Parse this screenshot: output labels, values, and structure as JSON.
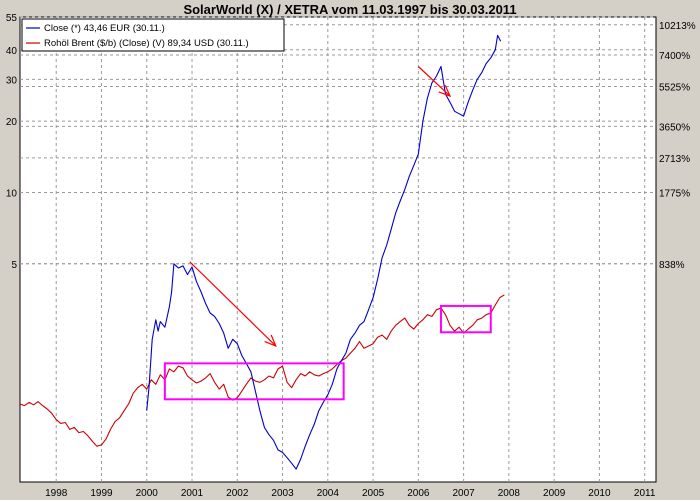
{
  "chart_data": {
    "type": "line",
    "title": "SolarWorld (X) / XETRA vom 11.03.1997  bis 30.03.2011",
    "x_range": [
      1997.2,
      2011.25
    ],
    "x_tick_labels": [
      "1998",
      "1999",
      "2000",
      "2001",
      "2002",
      "2003",
      "2004",
      "2005",
      "2006",
      "2007",
      "2008",
      "2009",
      "2010",
      "2011"
    ],
    "left_axis": {
      "scale": "log",
      "range": [
        0.6,
        55
      ],
      "ticks": [
        {
          "value": 5,
          "label": "5"
        },
        {
          "value": 10,
          "label": "10"
        },
        {
          "value": 20,
          "label": "20"
        },
        {
          "value": 30,
          "label": "30"
        },
        {
          "value": 40,
          "label": "40"
        },
        {
          "value": 55,
          "label": "55"
        }
      ]
    },
    "right_axis": {
      "ticks": [
        {
          "value": 5,
          "label": "838%"
        },
        {
          "value": 10,
          "label": "1775%"
        },
        {
          "value": 14,
          "label": "2713%"
        },
        {
          "value": 19,
          "label": "3650%"
        },
        {
          "value": 28,
          "label": "5525%"
        },
        {
          "value": 38,
          "label": "7400%"
        },
        {
          "value": 51,
          "label": "10213%"
        }
      ]
    },
    "grid": true,
    "legend_placement": "top-left",
    "series": [
      {
        "name": "Close (*) 43,46 EUR (30.11.)",
        "color": "#0000cc",
        "points": [
          [
            2000.0,
            1.2
          ],
          [
            2000.05,
            1.5
          ],
          [
            2000.12,
            2.4
          ],
          [
            2000.2,
            2.9
          ],
          [
            2000.25,
            2.6
          ],
          [
            2000.3,
            2.85
          ],
          [
            2000.4,
            2.7
          ],
          [
            2000.5,
            3.3
          ],
          [
            2000.55,
            3.8
          ],
          [
            2000.6,
            5.0
          ],
          [
            2000.7,
            4.8
          ],
          [
            2000.8,
            4.9
          ],
          [
            2000.9,
            4.5
          ],
          [
            2001.0,
            4.85
          ],
          [
            2001.1,
            4.2
          ],
          [
            2001.2,
            3.8
          ],
          [
            2001.3,
            3.4
          ],
          [
            2001.4,
            3.1
          ],
          [
            2001.5,
            3.0
          ],
          [
            2001.6,
            2.8
          ],
          [
            2001.7,
            2.55
          ],
          [
            2001.8,
            2.2
          ],
          [
            2001.9,
            2.4
          ],
          [
            2002.0,
            2.3
          ],
          [
            2002.1,
            2.05
          ],
          [
            2002.2,
            1.9
          ],
          [
            2002.3,
            1.75
          ],
          [
            2002.4,
            1.45
          ],
          [
            2002.5,
            1.2
          ],
          [
            2002.6,
            1.02
          ],
          [
            2002.7,
            0.95
          ],
          [
            2002.8,
            0.9
          ],
          [
            2002.9,
            0.82
          ],
          [
            2003.0,
            0.8
          ],
          [
            2003.1,
            0.76
          ],
          [
            2003.2,
            0.72
          ],
          [
            2003.3,
            0.68
          ],
          [
            2003.4,
            0.75
          ],
          [
            2003.5,
            0.85
          ],
          [
            2003.6,
            0.95
          ],
          [
            2003.7,
            1.05
          ],
          [
            2003.8,
            1.2
          ],
          [
            2003.9,
            1.3
          ],
          [
            2004.0,
            1.4
          ],
          [
            2004.1,
            1.55
          ],
          [
            2004.2,
            1.8
          ],
          [
            2004.3,
            1.95
          ],
          [
            2004.4,
            2.1
          ],
          [
            2004.5,
            2.4
          ],
          [
            2004.6,
            2.55
          ],
          [
            2004.7,
            2.75
          ],
          [
            2004.8,
            2.85
          ],
          [
            2004.9,
            3.2
          ],
          [
            2005.0,
            3.6
          ],
          [
            2005.1,
            4.3
          ],
          [
            2005.2,
            5.3
          ],
          [
            2005.3,
            6.0
          ],
          [
            2005.4,
            7.0
          ],
          [
            2005.5,
            8.2
          ],
          [
            2005.6,
            9.2
          ],
          [
            2005.7,
            10.3
          ],
          [
            2005.8,
            11.7
          ],
          [
            2005.9,
            13.0
          ],
          [
            2006.0,
            14.5
          ],
          [
            2006.1,
            20.0
          ],
          [
            2006.2,
            25.0
          ],
          [
            2006.3,
            29.0
          ],
          [
            2006.4,
            31.0
          ],
          [
            2006.5,
            34.0
          ],
          [
            2006.6,
            26.0
          ],
          [
            2006.7,
            24.0
          ],
          [
            2006.8,
            22.0
          ],
          [
            2006.9,
            21.5
          ],
          [
            2007.0,
            21.0
          ],
          [
            2007.1,
            24.0
          ],
          [
            2007.2,
            27.0
          ],
          [
            2007.3,
            30.0
          ],
          [
            2007.4,
            32.0
          ],
          [
            2007.5,
            35.0
          ],
          [
            2007.6,
            37.0
          ],
          [
            2007.7,
            40.0
          ],
          [
            2007.75,
            46.0
          ],
          [
            2007.82,
            43.46
          ]
        ]
      },
      {
        "name": "Rohöl Brent ($/b) (Close) (V) 89,34 USD (30.11.)",
        "color": "#cc0000",
        "points": [
          [
            1997.2,
            1.28
          ],
          [
            1997.3,
            1.26
          ],
          [
            1997.4,
            1.3
          ],
          [
            1997.5,
            1.27
          ],
          [
            1997.6,
            1.31
          ],
          [
            1997.7,
            1.26
          ],
          [
            1997.8,
            1.22
          ],
          [
            1997.9,
            1.17
          ],
          [
            1998.0,
            1.1
          ],
          [
            1998.1,
            1.06
          ],
          [
            1998.2,
            1.07
          ],
          [
            1998.3,
            1.0
          ],
          [
            1998.4,
            1.02
          ],
          [
            1998.5,
            0.97
          ],
          [
            1998.6,
            0.98
          ],
          [
            1998.7,
            0.94
          ],
          [
            1998.8,
            0.89
          ],
          [
            1998.9,
            0.85
          ],
          [
            1999.0,
            0.86
          ],
          [
            1999.1,
            0.91
          ],
          [
            1999.2,
            1.0
          ],
          [
            1999.3,
            1.08
          ],
          [
            1999.4,
            1.12
          ],
          [
            1999.5,
            1.2
          ],
          [
            1999.6,
            1.28
          ],
          [
            1999.7,
            1.42
          ],
          [
            1999.8,
            1.5
          ],
          [
            1999.9,
            1.55
          ],
          [
            2000.0,
            1.48
          ],
          [
            2000.1,
            1.62
          ],
          [
            2000.2,
            1.55
          ],
          [
            2000.3,
            1.7
          ],
          [
            2000.4,
            1.62
          ],
          [
            2000.5,
            1.8
          ],
          [
            2000.6,
            1.75
          ],
          [
            2000.7,
            1.85
          ],
          [
            2000.8,
            1.82
          ],
          [
            2000.9,
            1.68
          ],
          [
            2001.0,
            1.62
          ],
          [
            2001.1,
            1.57
          ],
          [
            2001.2,
            1.6
          ],
          [
            2001.3,
            1.65
          ],
          [
            2001.4,
            1.72
          ],
          [
            2001.5,
            1.58
          ],
          [
            2001.6,
            1.48
          ],
          [
            2001.7,
            1.55
          ],
          [
            2001.8,
            1.37
          ],
          [
            2001.9,
            1.33
          ],
          [
            2002.0,
            1.36
          ],
          [
            2002.1,
            1.45
          ],
          [
            2002.2,
            1.55
          ],
          [
            2002.3,
            1.65
          ],
          [
            2002.4,
            1.6
          ],
          [
            2002.5,
            1.58
          ],
          [
            2002.6,
            1.62
          ],
          [
            2002.7,
            1.68
          ],
          [
            2002.8,
            1.65
          ],
          [
            2002.9,
            1.8
          ],
          [
            2003.0,
            1.85
          ],
          [
            2003.1,
            1.58
          ],
          [
            2003.2,
            1.5
          ],
          [
            2003.3,
            1.62
          ],
          [
            2003.4,
            1.72
          ],
          [
            2003.5,
            1.68
          ],
          [
            2003.6,
            1.75
          ],
          [
            2003.7,
            1.7
          ],
          [
            2003.8,
            1.68
          ],
          [
            2003.9,
            1.72
          ],
          [
            2004.0,
            1.75
          ],
          [
            2004.1,
            1.8
          ],
          [
            2004.2,
            1.88
          ],
          [
            2004.3,
            1.95
          ],
          [
            2004.4,
            2.0
          ],
          [
            2004.5,
            2.1
          ],
          [
            2004.6,
            2.2
          ],
          [
            2004.7,
            2.35
          ],
          [
            2004.8,
            2.2
          ],
          [
            2004.9,
            2.25
          ],
          [
            2005.0,
            2.3
          ],
          [
            2005.1,
            2.45
          ],
          [
            2005.2,
            2.5
          ],
          [
            2005.3,
            2.4
          ],
          [
            2005.4,
            2.6
          ],
          [
            2005.5,
            2.75
          ],
          [
            2005.6,
            2.85
          ],
          [
            2005.7,
            2.95
          ],
          [
            2005.8,
            2.75
          ],
          [
            2005.9,
            2.65
          ],
          [
            2006.0,
            2.8
          ],
          [
            2006.1,
            2.9
          ],
          [
            2006.2,
            3.05
          ],
          [
            2006.3,
            3.0
          ],
          [
            2006.4,
            3.2
          ],
          [
            2006.5,
            3.25
          ],
          [
            2006.6,
            3.05
          ],
          [
            2006.7,
            2.75
          ],
          [
            2006.8,
            2.6
          ],
          [
            2006.9,
            2.7
          ],
          [
            2007.0,
            2.55
          ],
          [
            2007.1,
            2.65
          ],
          [
            2007.2,
            2.75
          ],
          [
            2007.3,
            2.9
          ],
          [
            2007.4,
            2.95
          ],
          [
            2007.5,
            3.05
          ],
          [
            2007.6,
            3.1
          ],
          [
            2007.7,
            3.35
          ],
          [
            2007.8,
            3.6
          ],
          [
            2007.9,
            3.7
          ]
        ]
      }
    ],
    "annotations": [
      {
        "type": "arrow",
        "color": "#ff0000",
        "from": [
          2000.95,
          5.1
        ],
        "to": [
          2002.85,
          2.25
        ]
      },
      {
        "type": "arrow",
        "color": "#ff0000",
        "from": [
          2006.0,
          34.0
        ],
        "to": [
          2006.7,
          25.5
        ]
      },
      {
        "type": "rect",
        "color": "#ff00ff",
        "x": [
          2000.4,
          2004.35
        ],
        "y": [
          1.34,
          1.9
        ]
      },
      {
        "type": "rect",
        "color": "#ff00ff",
        "x": [
          2006.5,
          2007.6
        ],
        "y": [
          2.57,
          3.32
        ]
      }
    ]
  }
}
